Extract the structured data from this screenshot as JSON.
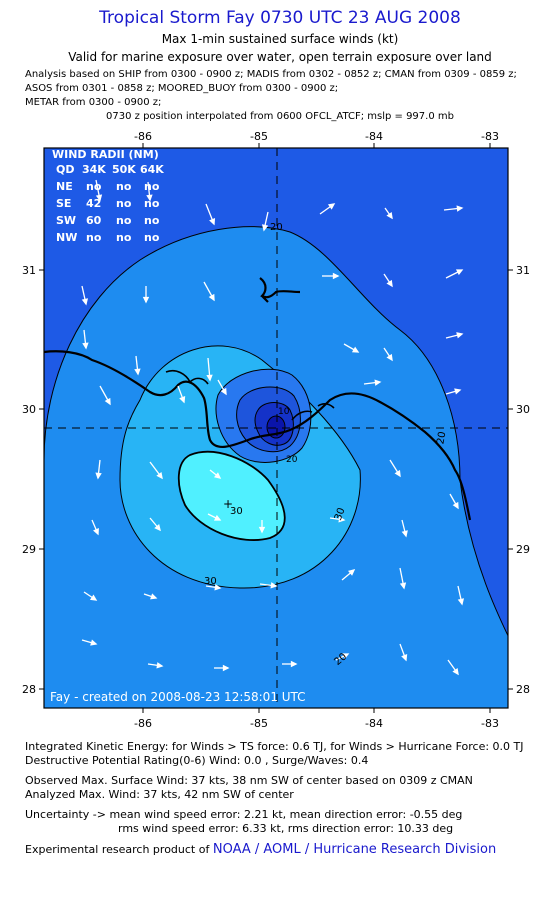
{
  "header": {
    "title": "Tropical Storm Fay 0730 UTC 23 AUG 2008",
    "subtitle": "Max 1-min sustained surface winds (kt)",
    "valid_for": "Valid for marine exposure over water, open terrain exposure over land",
    "analysis_lines": [
      "Analysis based on  SHIP from 0300 - 0900 z;  MADIS from 0302 - 0852 z;  CMAN from 0309 - 0859 z;",
      "ASOS from 0301 - 0858 z;  MOORED_BUOY from 0300 - 0900 z;",
      "METAR from 0300 - 0900 z;"
    ],
    "position_note": "0730 z position interpolated from 0600 OFCL_ATCF; mslp = 997.0 mb"
  },
  "map": {
    "lon_ticks": [
      "-86",
      "-85",
      "-84",
      "-83"
    ],
    "lat_ticks": [
      "31",
      "30",
      "29",
      "28"
    ],
    "contour_labels": [
      "20",
      "30",
      "20",
      "30",
      "20",
      "30",
      "10",
      "20"
    ],
    "wind_radii": {
      "title": "WIND RADII (NM)",
      "columns": [
        "QD",
        "34K",
        "50K",
        "64K"
      ],
      "rows": [
        [
          "NE",
          "no",
          "no",
          "no"
        ],
        [
          "SE",
          "42",
          "no",
          "no"
        ],
        [
          "SW",
          "60",
          "no",
          "no"
        ],
        [
          "NW",
          "no",
          "no",
          "no"
        ]
      ]
    },
    "credit": "Fay - created on 2008-08-23 12:58:01 UTC",
    "colors": {
      "band_lt20": "#1e5ae6",
      "band_20_30": "#1e8cf0",
      "band_30_34": "#28b4f5",
      "band_gt34": "#50f0ff",
      "band_inner_1": "#2878f0",
      "band_inner_2": "#1e55dc",
      "band_inner_3": "#1432c8",
      "band_inner_4": "#0a14aa",
      "arrow": "#ffffff",
      "text_blue": "#1a1acd"
    }
  },
  "footer": {
    "ike": "Integrated Kinetic Energy:  for Winds > TS force: 0.6 TJ,  for Winds > Hurricane Force: 0.0 TJ",
    "dpr": "Destructive Potential Rating(0-6)   Wind: 0.0 , Surge/Waves: 0.4",
    "observed": "Observed Max. Surface Wind: 37 kts, 38 nm SW of center based on 0309 z CMAN",
    "analyzed": "Analyzed Max. Wind: 37 kts, 42 nm SW of center",
    "uncertainty_1": "Uncertainty -> mean wind speed error: 2.21 kt,   mean direction error:  -0.55 deg",
    "uncertainty_2": "rms wind speed error: 6.33 kt,   rms direction error: 10.33 deg",
    "product_prefix": "Experimental research product of ",
    "product_link": "NOAA / AOML / Hurricane Research Division"
  }
}
